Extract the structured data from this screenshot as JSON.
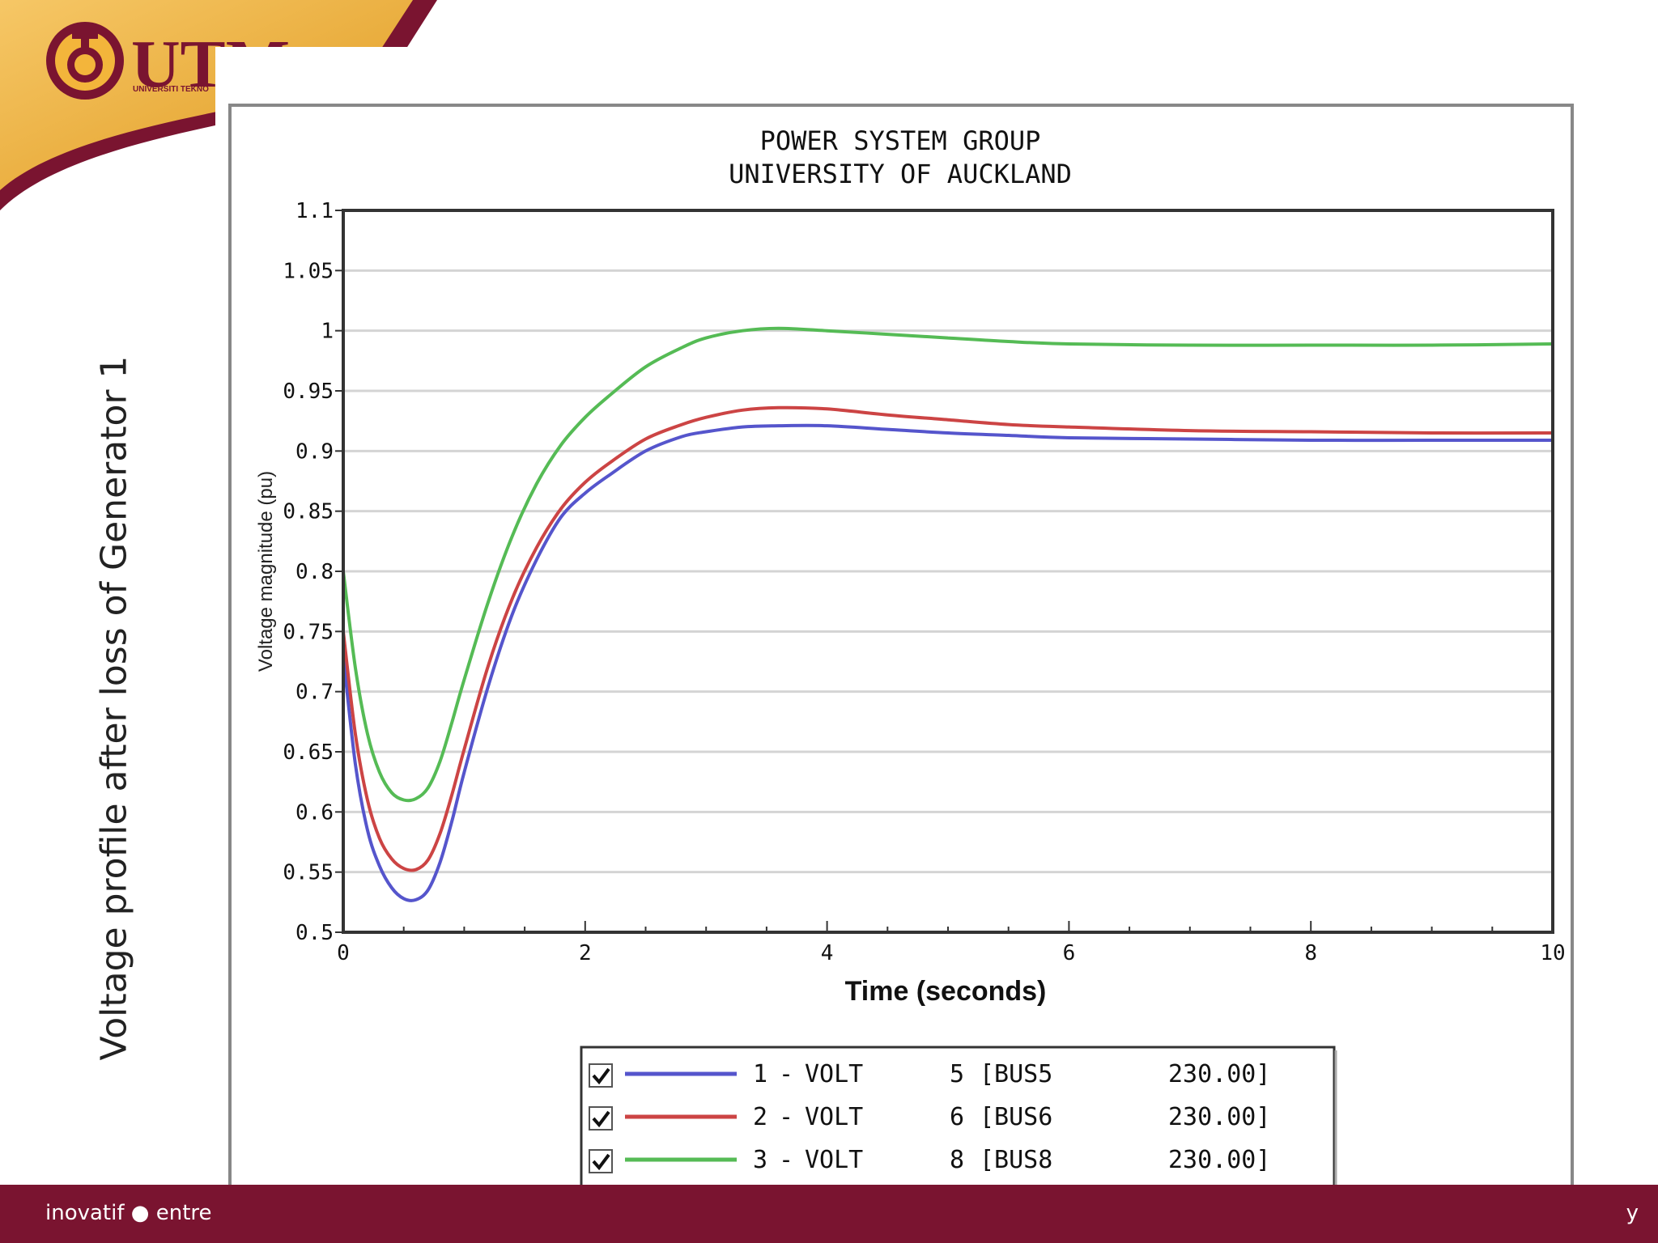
{
  "brand": {
    "logo_text": "UTM",
    "logo_subtext": "UNIVERSITI TEKNO",
    "primary_color": "#7a1430",
    "accent_color": "#f0b23c"
  },
  "slide": {
    "side_caption": "Voltage  profile after loss of Generator 1",
    "footer_left": "inovatif ● entre",
    "footer_right": "y"
  },
  "chart_data": {
    "type": "line",
    "title": [
      "POWER SYSTEM GROUP",
      "UNIVERSITY OF AUCKLAND"
    ],
    "xlabel": "Time (seconds)",
    "ylabel": "Voltage magnitude (pu)",
    "xlim": [
      0,
      10
    ],
    "ylim": [
      0.5,
      1.1
    ],
    "x_ticks": [
      "0",
      "2",
      "4",
      "6",
      "8",
      "10"
    ],
    "y_ticks": [
      "0.5",
      "0.55",
      "0.6",
      "0.65",
      "0.7",
      "0.75",
      "0.8",
      "0.85",
      "0.9",
      "0.95",
      "1",
      "1.05",
      "1.1"
    ],
    "grid": "horizontal",
    "legend_position": "bottom",
    "series": [
      {
        "number": "1",
        "var": "VOLT",
        "bus_num": "5",
        "bus": "[BUS5",
        "kv": "230.00]",
        "color": "#5555cc",
        "checked": true,
        "x": [
          0,
          0.1,
          0.2,
          0.3,
          0.4,
          0.5,
          0.6,
          0.7,
          0.8,
          0.9,
          1.0,
          1.2,
          1.4,
          1.6,
          1.8,
          2.0,
          2.2,
          2.5,
          2.8,
          3.0,
          3.3,
          3.6,
          4.0,
          4.5,
          5.0,
          5.5,
          6.0,
          7.0,
          8.0,
          9.0,
          10.0
        ],
        "y": [
          0.73,
          0.64,
          0.585,
          0.555,
          0.537,
          0.528,
          0.527,
          0.535,
          0.558,
          0.593,
          0.633,
          0.705,
          0.765,
          0.81,
          0.845,
          0.865,
          0.88,
          0.9,
          0.912,
          0.916,
          0.92,
          0.921,
          0.921,
          0.918,
          0.915,
          0.913,
          0.911,
          0.91,
          0.909,
          0.909,
          0.909
        ]
      },
      {
        "number": "2",
        "var": "VOLT",
        "bus_num": "6",
        "bus": "[BUS6",
        "kv": "230.00]",
        "color": "#cc4444",
        "checked": true,
        "x": [
          0,
          0.1,
          0.2,
          0.3,
          0.4,
          0.5,
          0.6,
          0.7,
          0.8,
          0.9,
          1.0,
          1.2,
          1.4,
          1.6,
          1.8,
          2.0,
          2.2,
          2.5,
          2.8,
          3.0,
          3.3,
          3.6,
          4.0,
          4.5,
          5.0,
          5.5,
          6.0,
          7.0,
          8.0,
          9.0,
          10.0
        ],
        "y": [
          0.75,
          0.665,
          0.61,
          0.578,
          0.561,
          0.553,
          0.552,
          0.56,
          0.582,
          0.615,
          0.652,
          0.722,
          0.778,
          0.82,
          0.852,
          0.874,
          0.89,
          0.91,
          0.922,
          0.928,
          0.934,
          0.936,
          0.935,
          0.93,
          0.926,
          0.922,
          0.92,
          0.917,
          0.916,
          0.915,
          0.915
        ]
      },
      {
        "number": "3",
        "var": "VOLT",
        "bus_num": "8",
        "bus": "[BUS8",
        "kv": "230.00]",
        "color": "#55bb55",
        "checked": true,
        "x": [
          0,
          0.1,
          0.2,
          0.3,
          0.4,
          0.5,
          0.6,
          0.7,
          0.8,
          0.9,
          1.0,
          1.2,
          1.4,
          1.6,
          1.8,
          2.0,
          2.2,
          2.5,
          2.8,
          3.0,
          3.3,
          3.6,
          4.0,
          4.5,
          5.0,
          5.5,
          6.0,
          7.0,
          8.0,
          9.0,
          10.0
        ],
        "y": [
          0.8,
          0.72,
          0.665,
          0.633,
          0.616,
          0.61,
          0.611,
          0.62,
          0.642,
          0.675,
          0.71,
          0.775,
          0.83,
          0.873,
          0.905,
          0.928,
          0.946,
          0.97,
          0.986,
          0.994,
          1.0,
          1.002,
          1.0,
          0.997,
          0.994,
          0.991,
          0.989,
          0.988,
          0.988,
          0.988,
          0.989
        ]
      }
    ]
  }
}
